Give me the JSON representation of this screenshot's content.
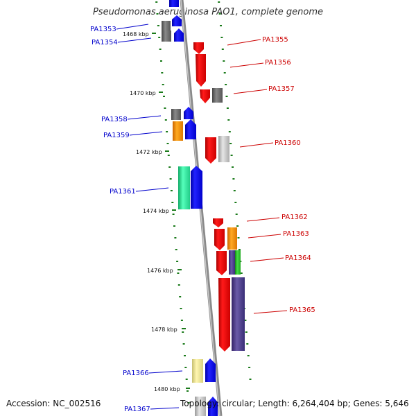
{
  "title": "Pseudomonas aeruginosa PAO1, complete genome",
  "footer": {
    "accession": "Accession: NC_002516",
    "topology": "Topology: circular; Length: 6,264,404 bp; Genes: 5,646"
  },
  "colors": {
    "left_labels": "#0000cc",
    "right_labels": "#cc0000",
    "backbone": "#8a8a8a",
    "ticks": "#1a7a1a"
  },
  "kbp_markers": [
    "1468 kbp",
    "1470 kbp",
    "1472 kbp",
    "1474 kbp",
    "1476 kbp",
    "1478 kbp",
    "1480 kbp"
  ],
  "genes_left": [
    {
      "label": "PA1353"
    },
    {
      "label": "PA1354"
    },
    {
      "label": "PA1358"
    },
    {
      "label": "PA1359"
    },
    {
      "label": "PA1361"
    },
    {
      "label": "PA1366"
    },
    {
      "label": "PA1367"
    }
  ],
  "genes_right": [
    {
      "label": "PA1355"
    },
    {
      "label": "PA1356"
    },
    {
      "label": "PA1357"
    },
    {
      "label": "PA1360"
    },
    {
      "label": "PA1362"
    },
    {
      "label": "PA1363"
    },
    {
      "label": "PA1364"
    },
    {
      "label": "PA1365"
    }
  ]
}
